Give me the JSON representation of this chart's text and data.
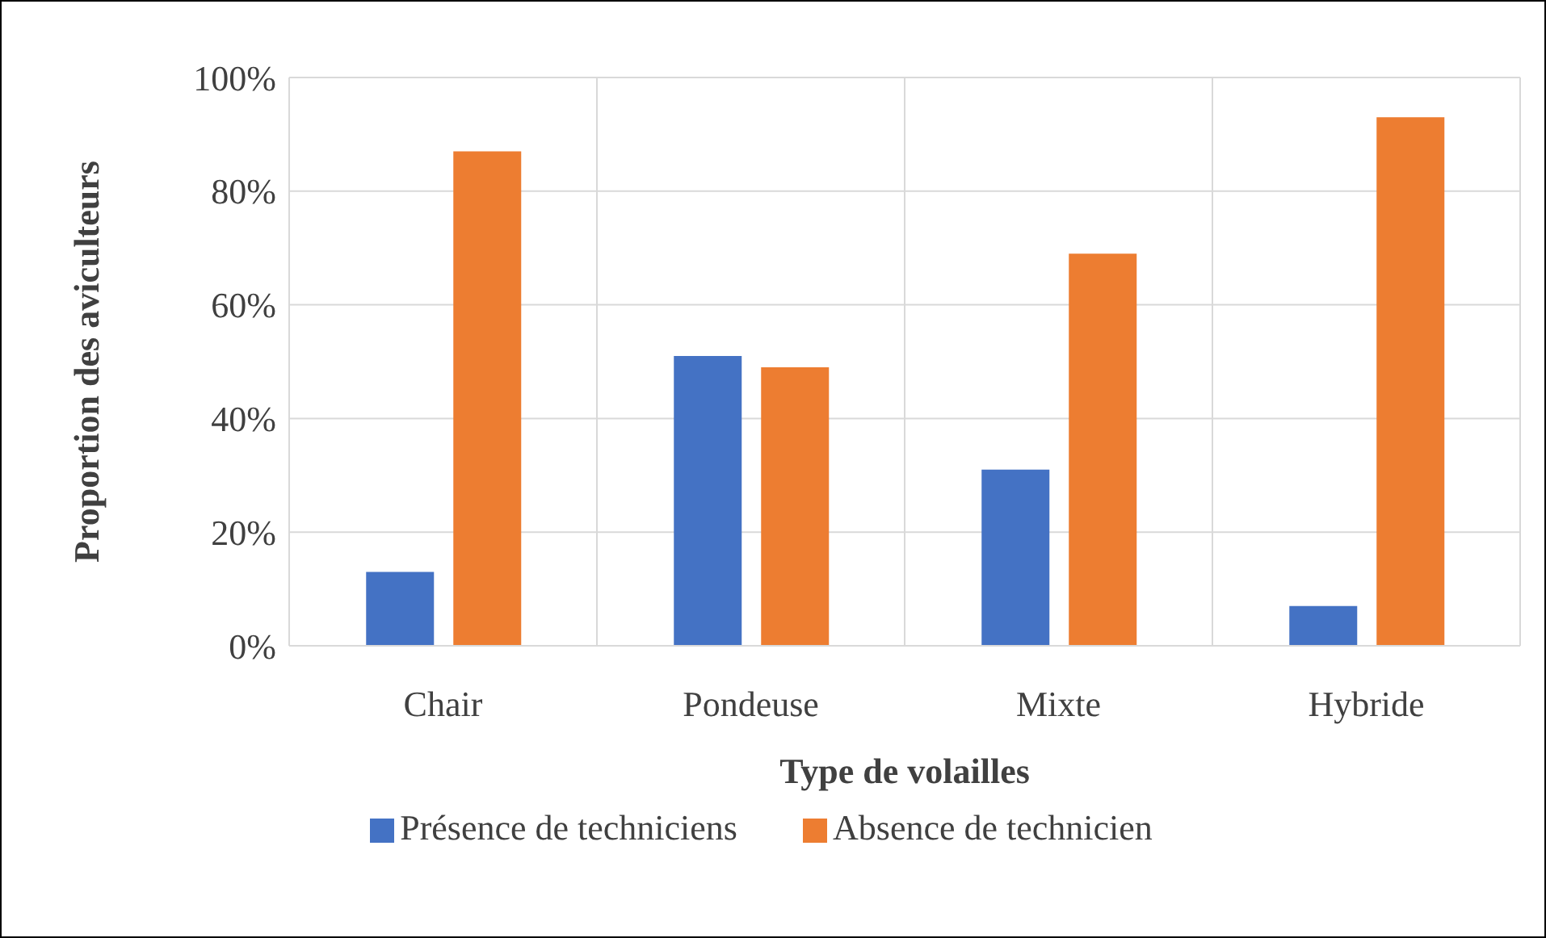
{
  "chart_data": {
    "type": "bar",
    "xlabel": "Type de volailles",
    "ylabel": "Proportion des aviculteurs",
    "categories": [
      "Chair",
      "Pondeuse",
      "Mixte",
      "Hybride"
    ],
    "series": [
      {
        "name": "Présence de techniciens",
        "color": "#4472c4",
        "values": [
          13,
          51,
          31,
          7
        ]
      },
      {
        "name": "Absence de technicien",
        "color": "#ed7d31",
        "values": [
          87,
          49,
          69,
          93
        ]
      }
    ],
    "ylim": [
      0,
      100
    ],
    "yticks": [
      {
        "value": 0,
        "label": "0%"
      },
      {
        "value": 20,
        "label": "20%"
      },
      {
        "value": 40,
        "label": "40%"
      },
      {
        "value": 60,
        "label": "60%"
      },
      {
        "value": 80,
        "label": "80%"
      },
      {
        "value": 100,
        "label": "100%"
      }
    ],
    "grid": true,
    "legend": "bottom"
  }
}
